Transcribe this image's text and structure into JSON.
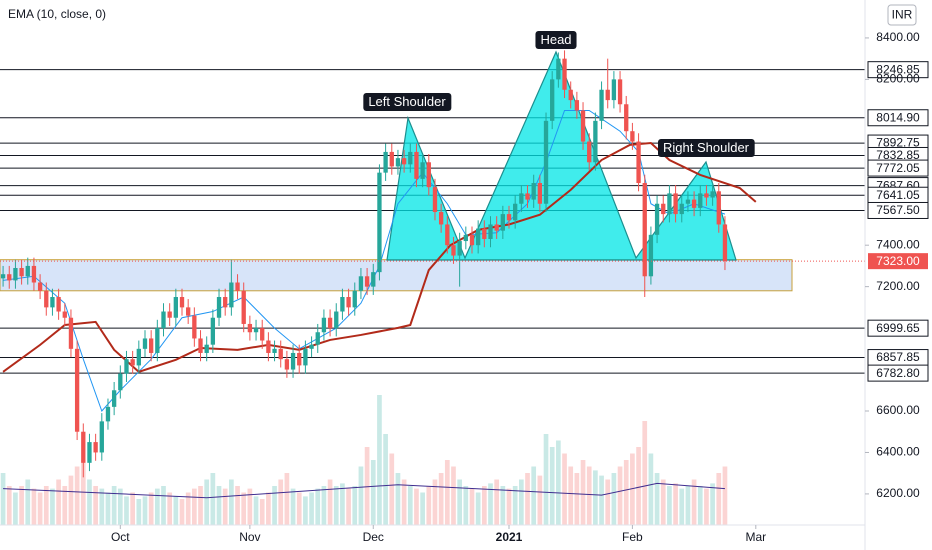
{
  "chart_data": {
    "type": "candlestick",
    "indicator_label": "EMA (10, close, 0)",
    "currency": "INR",
    "xlim": [
      -0.5,
      139.7
    ],
    "ylim": [
      6050,
      8583
    ],
    "xticks": [
      {
        "value": 19,
        "label": "Oct"
      },
      {
        "value": 40,
        "label": "Nov"
      },
      {
        "value": 60,
        "label": "Dec"
      },
      {
        "value": 82,
        "label": "2021",
        "bold": true
      },
      {
        "value": 102,
        "label": "Feb"
      },
      {
        "value": 122,
        "label": "Mar"
      }
    ],
    "yticks": [
      {
        "value": 8400,
        "label": "8400.00"
      },
      {
        "value": 8200,
        "label": "8200.00"
      },
      {
        "value": 7400,
        "label": "7400.00"
      },
      {
        "value": 7200,
        "label": "7200.00"
      },
      {
        "value": 6600,
        "label": "6600.00"
      },
      {
        "value": 6400,
        "label": "6400.00"
      },
      {
        "value": 6200,
        "label": "6200.00"
      }
    ],
    "grid": false,
    "up_color": "#26a69a",
    "down_color": "#ef5350",
    "open": [
      7240,
      7260,
      7230,
      7290,
      7250,
      7300,
      7220,
      7180,
      7100,
      7150,
      7080,
      7050,
      6900,
      6500,
      6350,
      6450,
      6400,
      6550,
      6620,
      6700,
      6780,
      6850,
      6820,
      6900,
      6950,
      6880,
      7000,
      7080,
      7050,
      7150,
      7100,
      7060,
      6950,
      6880,
      6920,
      7050,
      7150,
      7100,
      7220,
      7180,
      7020,
      6980,
      7000,
      6940,
      6880,
      6900,
      6850,
      6800,
      6880,
      6820,
      6900,
      6920,
      6980,
      7050,
      7000,
      7080,
      7150,
      7100,
      7180,
      7250,
      7200,
      7270,
      7750,
      7850,
      7780,
      7820,
      7790,
      7850,
      7720,
      7800,
      7680,
      7560,
      7500,
      7400,
      7350,
      7420,
      7450,
      7400,
      7480,
      7430,
      7500,
      7470,
      7550,
      7520,
      7600,
      7650,
      7620,
      7700,
      7600,
      8000,
      8200,
      8300,
      8150,
      8100,
      8050,
      7900,
      7800,
      8000,
      8150,
      8100,
      8200,
      8080,
      7950,
      7900,
      7700,
      7250,
      7450,
      7600,
      7550,
      7650,
      7550,
      7600,
      7620,
      7580,
      7650,
      7630,
      7660,
      7500
    ],
    "high": [
      7300,
      7300,
      7330,
      7330,
      7340,
      7340,
      7260,
      7220,
      7190,
      7190,
      7120,
      7090,
      6940,
      6540,
      6490,
      6490,
      6590,
      6660,
      6740,
      6820,
      6890,
      6890,
      6940,
      6990,
      6990,
      7040,
      7120,
      7120,
      7190,
      7190,
      7140,
      7100,
      6990,
      6960,
      7090,
      7190,
      7190,
      7330,
      7260,
      7220,
      7060,
      7040,
      7040,
      6980,
      6940,
      6940,
      6890,
      6920,
      6920,
      6940,
      6960,
      7020,
      7090,
      7090,
      7120,
      7190,
      7190,
      7220,
      7290,
      7290,
      7310,
      7790,
      7890,
      7890,
      7860,
      7860,
      7890,
      7890,
      7840,
      7840,
      7720,
      7600,
      7540,
      7440,
      7460,
      7490,
      7490,
      7520,
      7520,
      7540,
      7540,
      7590,
      7590,
      7640,
      7690,
      7690,
      7740,
      7740,
      8040,
      8240,
      8330,
      8340,
      8190,
      8140,
      8090,
      7940,
      8040,
      8190,
      8300,
      8240,
      8240,
      8120,
      7990,
      7940,
      7740,
      7490,
      7640,
      7640,
      7690,
      7690,
      7640,
      7660,
      7660,
      7690,
      7690,
      7700,
      7700,
      7540
    ],
    "low": [
      7200,
      7190,
      7190,
      7210,
      7210,
      7180,
      7140,
      7060,
      7060,
      7040,
      7010,
      6860,
      6460,
      6280,
      6310,
      6360,
      6360,
      6510,
      6580,
      6660,
      6740,
      6780,
      6780,
      6860,
      6840,
      6840,
      6960,
      7010,
      7010,
      7060,
      7020,
      6910,
      6840,
      6840,
      6880,
      7010,
      7060,
      7060,
      7140,
      6980,
      6940,
      6940,
      6900,
      6840,
      6840,
      6810,
      6760,
      6760,
      6780,
      6780,
      6860,
      6880,
      6940,
      6960,
      6960,
      7040,
      7060,
      7060,
      7140,
      7160,
      7160,
      7230,
      7710,
      7740,
      7740,
      7750,
      7750,
      7680,
      7680,
      7640,
      7520,
      7460,
      7360,
      7310,
      7200,
      7380,
      7360,
      7360,
      7390,
      7390,
      7430,
      7430,
      7480,
      7480,
      7560,
      7580,
      7580,
      7560,
      7560,
      7960,
      8160,
      8110,
      8060,
      8010,
      7860,
      7760,
      7760,
      7960,
      8060,
      8060,
      8040,
      7910,
      7860,
      7660,
      7150,
      7210,
      7410,
      7510,
      7510,
      7510,
      7510,
      7560,
      7540,
      7540,
      7590,
      7590,
      7460,
      7280
    ],
    "close": [
      7260,
      7230,
      7290,
      7250,
      7300,
      7220,
      7180,
      7100,
      7150,
      7080,
      7050,
      6900,
      6500,
      6350,
      6450,
      6400,
      6550,
      6620,
      6700,
      6780,
      6850,
      6820,
      6900,
      6950,
      6880,
      7000,
      7080,
      7050,
      7150,
      7100,
      7060,
      6950,
      6880,
      6920,
      7050,
      7150,
      7100,
      7220,
      7180,
      7020,
      6980,
      7000,
      6940,
      6880,
      6900,
      6850,
      6800,
      6880,
      6820,
      6900,
      6920,
      6980,
      7050,
      7000,
      7080,
      7150,
      7100,
      7180,
      7250,
      7200,
      7270,
      7750,
      7850,
      7780,
      7820,
      7790,
      7850,
      7720,
      7800,
      7680,
      7560,
      7500,
      7400,
      7350,
      7420,
      7450,
      7400,
      7480,
      7430,
      7500,
      7470,
      7550,
      7520,
      7600,
      7650,
      7620,
      7700,
      7600,
      8000,
      8200,
      8300,
      8150,
      8100,
      8050,
      7900,
      7800,
      8000,
      8150,
      8100,
      8200,
      8080,
      7950,
      7900,
      7700,
      7250,
      7450,
      7600,
      7550,
      7650,
      7550,
      7600,
      7620,
      7580,
      7650,
      7630,
      7660,
      7500,
      7323
    ],
    "volume": [
      40,
      30,
      25,
      30,
      35,
      28,
      25,
      30,
      28,
      35,
      30,
      38,
      45,
      50,
      35,
      30,
      28,
      25,
      30,
      28,
      22,
      25,
      20,
      22,
      25,
      28,
      30,
      25,
      22,
      20,
      25,
      28,
      30,
      35,
      40,
      30,
      28,
      35,
      30,
      25,
      28,
      22,
      20,
      25,
      30,
      35,
      40,
      28,
      25,
      22,
      25,
      28,
      30,
      35,
      30,
      32,
      28,
      30,
      45,
      60,
      50,
      100,
      70,
      55,
      40,
      35,
      30,
      28,
      25,
      30,
      35,
      40,
      50,
      45,
      35,
      30,
      28,
      25,
      30,
      32,
      35,
      30,
      28,
      30,
      35,
      40,
      45,
      38,
      70,
      60,
      65,
      55,
      45,
      40,
      50,
      45,
      42,
      38,
      35,
      40,
      45,
      50,
      55,
      60,
      80,
      55,
      40,
      35,
      30,
      32,
      28,
      30,
      35,
      30,
      28,
      32,
      40,
      45
    ],
    "lines": [
      {
        "color": "#2196f3",
        "width": 1,
        "x": [
          0,
          5,
          10,
          13,
          16,
          19,
          24,
          29,
          34,
          39,
          44,
          48,
          54,
          58,
          61,
          64,
          68,
          72,
          75,
          80,
          85,
          88,
          91,
          95,
          100,
          103,
          105,
          108,
          112,
          117
        ],
        "values": [
          7230,
          7250,
          7120,
          6850,
          6600,
          6700,
          6850,
          7050,
          7080,
          7150,
          7000,
          6900,
          7000,
          7120,
          7300,
          7600,
          7750,
          7600,
          7450,
          7460,
          7600,
          7800,
          8050,
          8050,
          7950,
          7850,
          7600,
          7550,
          7600,
          7550
        ]
      },
      {
        "color": "#b22a1a",
        "width": 2,
        "x": [
          0,
          6,
          10,
          15,
          18,
          22,
          28,
          32,
          38,
          43,
          48,
          53,
          58,
          64,
          66,
          69,
          72.5,
          77,
          82,
          87,
          92,
          97,
          101.6,
          105,
          108,
          113,
          119.4,
          122
        ],
        "values": [
          6789,
          6919,
          7015,
          7030,
          6895,
          6789,
          6847,
          6904,
          6895,
          6919,
          6895,
          6943,
          6967,
          7001,
          7015,
          7280,
          7400,
          7474,
          7500,
          7547,
          7667,
          7811,
          7884,
          7893,
          7811,
          7739,
          7676,
          7609
        ]
      }
    ],
    "volume_ma": {
      "color": "#3f2d8f",
      "x": [
        0,
        33,
        64,
        97,
        106,
        117
      ],
      "values": [
        28,
        21,
        31,
        23,
        32,
        28
      ]
    },
    "zone": {
      "low": 7180,
      "high": 7330
    },
    "levels": [
      {
        "value": 8246.85,
        "label": "8246.85"
      },
      {
        "value": 8014.9,
        "label": "8014.90"
      },
      {
        "value": 7892.75,
        "label": "7892.75"
      },
      {
        "value": 7832.85,
        "label": "7832.85"
      },
      {
        "value": 7772.05,
        "label": "7772.05"
      },
      {
        "value": 7687.6,
        "label": "7687.60"
      },
      {
        "value": 7641.05,
        "label": "7641.05"
      },
      {
        "value": 7567.5,
        "label": "7567.50"
      },
      {
        "value": 6999.65,
        "label": "6999.65"
      },
      {
        "value": 6857.85,
        "label": "6857.85"
      },
      {
        "value": 6782.8,
        "label": "6782.80"
      }
    ],
    "current_price": {
      "value": 7323,
      "label": "7323.00",
      "color": "#ef5350"
    },
    "annotations": [
      "Head",
      "Left Shoulder",
      "Right Shoulder"
    ]
  }
}
